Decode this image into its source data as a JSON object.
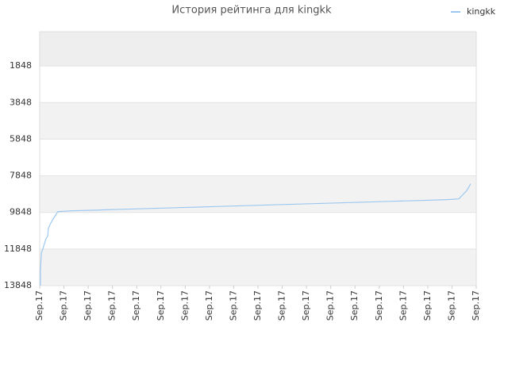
{
  "chart_data": {
    "type": "line",
    "title": "История рейтинга для kingkk",
    "x": [
      0.03,
      0.03,
      0.07,
      0.13,
      0.26,
      0.33,
      0.36,
      0.43,
      0.56,
      0.75,
      1.31,
      2.45,
      3.56,
      4.65,
      5.73,
      6.87,
      7.95,
      9.06,
      10.14,
      11.29,
      12.37,
      13.48,
      14.56,
      15.71,
      16.79,
      17.28,
      17.47,
      17.6,
      17.77
    ],
    "series": [
      {
        "name": "kingkk",
        "color": "#9cc8f0",
        "values": [
          13848,
          12978,
          12065,
          11848,
          11283,
          11152,
          10718,
          10500,
          10196,
          9805,
          9761,
          9718,
          9674,
          9631,
          9587,
          9544,
          9500,
          9457,
          9413,
          9370,
          9326,
          9283,
          9239,
          9196,
          9152,
          9109,
          8848,
          8674,
          8283
        ]
      }
    ],
    "xlim": [
      0,
      18
    ],
    "xticks": [
      {
        "value": 0,
        "label": "Sep.17"
      },
      {
        "value": 1,
        "label": "Sep.17"
      },
      {
        "value": 2,
        "label": "Sep.17"
      },
      {
        "value": 3,
        "label": "Sep.17"
      },
      {
        "value": 4,
        "label": "Sep.17"
      },
      {
        "value": 5,
        "label": "Sep.17"
      },
      {
        "value": 6,
        "label": "Sep.17"
      },
      {
        "value": 7,
        "label": "Sep.17"
      },
      {
        "value": 8,
        "label": "Sep.17"
      },
      {
        "value": 9,
        "label": "Sep.17"
      },
      {
        "value": 10,
        "label": "Sep.17"
      },
      {
        "value": 11,
        "label": "Sep.17"
      },
      {
        "value": 12,
        "label": "Sep.17"
      },
      {
        "value": 13,
        "label": "Sep.17"
      },
      {
        "value": 14,
        "label": "Sep.17"
      },
      {
        "value": 15,
        "label": "Sep.17"
      },
      {
        "value": 16,
        "label": "Sep.17"
      },
      {
        "value": 17,
        "label": "Sep.17"
      },
      {
        "value": 18,
        "label": "Sep.17"
      }
    ],
    "ylim": [
      13848,
      -22
    ],
    "yticks": [
      1848,
      3848,
      5848,
      7848,
      9848,
      11848,
      13848
    ],
    "grid": true,
    "legend": "top-right"
  }
}
